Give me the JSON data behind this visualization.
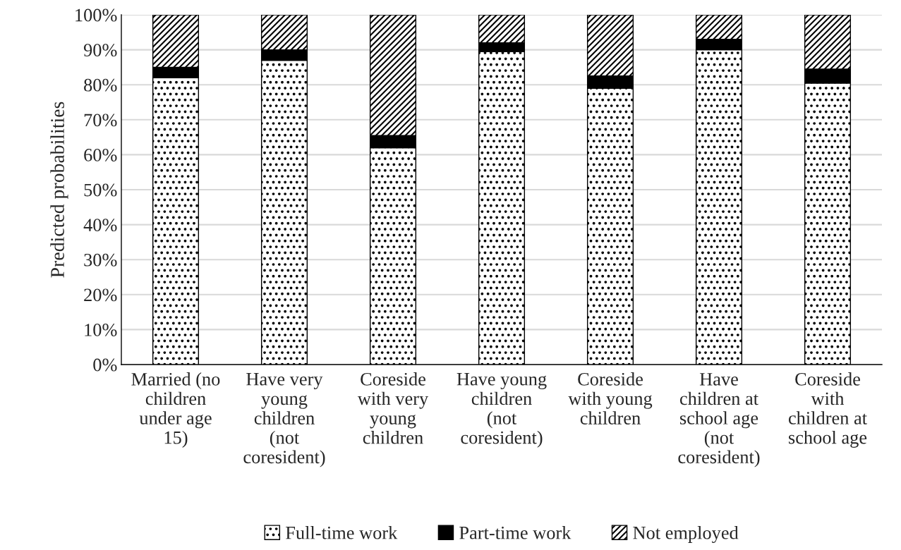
{
  "chart_data": {
    "type": "bar",
    "stacked": true,
    "ylabel": "Predicted probabilities",
    "categories": [
      "Married (no\nchildren\nunder age\n15)",
      "Have very\nyoung\nchildren\n(not\ncoresident)",
      "Coreside\nwith very\nyoung\nchildren",
      "Have young\nchildren\n(not\ncoresident)",
      "Coreside\nwith young\nchildren",
      "Have\nchildren at\nschool age\n(not\ncoresident)",
      "Coreside\nwith\nchildren at\nschool age"
    ],
    "series": [
      {
        "name": "Full-time work",
        "color": "#000000",
        "values": [
          82,
          87,
          62,
          89.5,
          79,
          90,
          80.5
        ]
      },
      {
        "name": "Part-time work",
        "color": "#000000",
        "values": [
          3,
          3,
          3.5,
          2.5,
          3.5,
          3,
          4
        ]
      },
      {
        "name": "Not employed",
        "color": "#000000",
        "values": [
          15,
          10,
          34.5,
          8,
          17.5,
          7,
          15.5
        ]
      }
    ],
    "ylim": [
      0,
      100
    ],
    "yticks": [
      {
        "value": 0,
        "label": "0%"
      },
      {
        "value": 10,
        "label": "10%"
      },
      {
        "value": 20,
        "label": "20%"
      },
      {
        "value": 30,
        "label": "30%"
      },
      {
        "value": 40,
        "label": "40%"
      },
      {
        "value": 50,
        "label": "50%"
      },
      {
        "value": 60,
        "label": "60%"
      },
      {
        "value": 70,
        "label": "70%"
      },
      {
        "value": 80,
        "label": "80%"
      },
      {
        "value": 90,
        "label": "90%"
      },
      {
        "value": 100,
        "label": "100%"
      }
    ],
    "grid": "y",
    "legend": "bottom"
  }
}
